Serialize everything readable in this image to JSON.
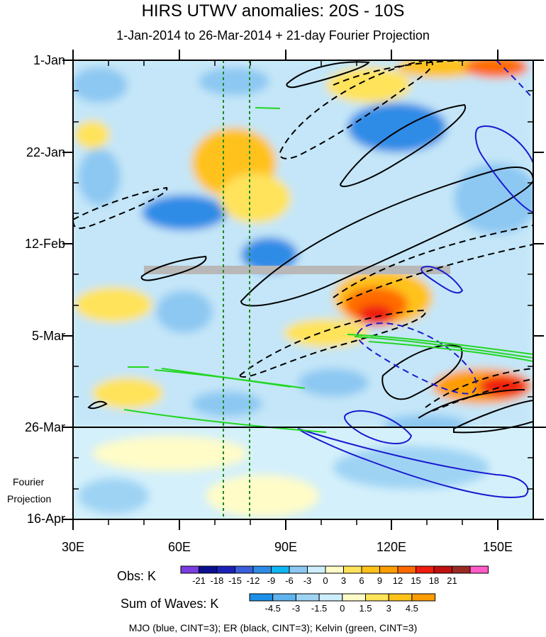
{
  "chart_data": {
    "type": "heatmap",
    "title": "HIRS UTWV anomalies: 20S - 10S",
    "subtitle": "1-Jan-2014 to 26-Mar-2014 + 21-day Fourier Projection",
    "y_ticks": [
      "1-Jan",
      "22-Jan",
      "12-Feb",
      "5-Mar",
      "26-Mar",
      "16-Apr"
    ],
    "x_ticks": [
      "30E",
      "60E",
      "90E",
      "120E",
      "150E"
    ],
    "xlim": [
      30,
      160
    ],
    "projection_label": [
      "Fourier",
      "Projection"
    ],
    "reference_lines_longitude": [
      72,
      80
    ],
    "missing_band_date": "~19-Feb",
    "obs_colorbar": {
      "label": "Obs: K",
      "levels": [
        "-21",
        "-18",
        "-15",
        "-12",
        "-9",
        "-6",
        "-3",
        "0",
        "3",
        "6",
        "9",
        "12",
        "15",
        "18",
        "21"
      ],
      "colors": [
        "#7a3de0",
        "#0b0f8f",
        "#1b21b8",
        "#3a5fd9",
        "#2d8be6",
        "#11b6f2",
        "#8cc8f2",
        "#cdeefb",
        "#fffcc8",
        "#ffe35a",
        "#ffc21a",
        "#ff9d00",
        "#ff6a00",
        "#f01d0d",
        "#c0100f",
        "#9a2a24",
        "#ff5cc8"
      ]
    },
    "waves_colorbar": {
      "label": "Sum of Waves: K",
      "levels": [
        "-4.5",
        "-3",
        "-1.5",
        "0",
        "1.5",
        "3",
        "4.5"
      ],
      "colors": [
        "#1c8fe8",
        "#5fb4ee",
        "#9fd3f4",
        "#cdeefb",
        "#fffcc8",
        "#ffe35a",
        "#ffc21a",
        "#ff9d00"
      ]
    },
    "footer": "MJO (blue, CINT=3); ER (black, CINT=3); Kelvin (green, CINT=3)"
  }
}
